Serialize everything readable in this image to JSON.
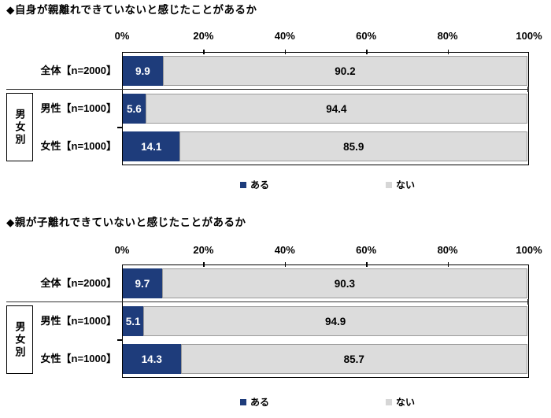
{
  "colors": {
    "aru": "#1e3c7b",
    "nai": "#dcdcdc",
    "nai_border": "#9b9b9b",
    "axis": "#000000",
    "separator": "#333333"
  },
  "group_label": "男女別",
  "legend": {
    "items": [
      {
        "label": "ある",
        "color": "#1e3c7b"
      },
      {
        "label": "ない",
        "color": "#d6d6d6"
      }
    ]
  },
  "chart_data": [
    {
      "type": "bar",
      "orientation": "horizontal",
      "stacked": true,
      "title": "◆自身が親離れできていないと感じたことがあるか",
      "categories": [
        "全体【n=2000】",
        "男性【n=1000】",
        "女性【n=1000】"
      ],
      "series": [
        {
          "name": "ある",
          "values": [
            9.9,
            5.6,
            14.1
          ]
        },
        {
          "name": "ない",
          "values": [
            90.2,
            94.4,
            85.9
          ]
        }
      ],
      "xlim": [
        0,
        100
      ],
      "x_tick_labels": [
        "0%",
        "20%",
        "40%",
        "60%",
        "80%",
        "100%"
      ],
      "legend_position": "bottom",
      "grid": false
    },
    {
      "type": "bar",
      "orientation": "horizontal",
      "stacked": true,
      "title": "◆親が子離れできていないと感じたことがあるか",
      "categories": [
        "全体【n=2000】",
        "男性【n=1000】",
        "女性【n=1000】"
      ],
      "series": [
        {
          "name": "ある",
          "values": [
            9.7,
            5.1,
            14.3
          ]
        },
        {
          "name": "ない",
          "values": [
            90.3,
            94.9,
            85.7
          ]
        }
      ],
      "xlim": [
        0,
        100
      ],
      "x_tick_labels": [
        "0%",
        "20%",
        "40%",
        "60%",
        "80%",
        "100%"
      ],
      "legend_position": "bottom",
      "grid": false
    }
  ]
}
